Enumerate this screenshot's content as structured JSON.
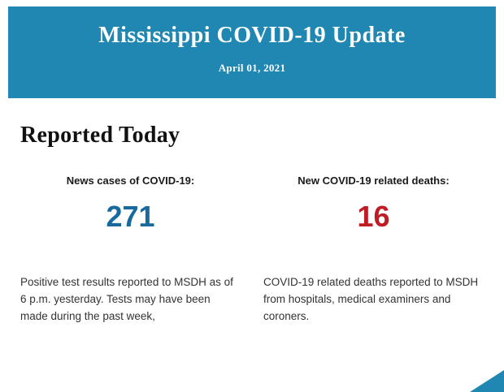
{
  "banner": {
    "title": "Mississippi COVID-19 Update",
    "date": "April 01, 2021",
    "bg_color": "#1f87b2"
  },
  "section": {
    "heading": "Reported Today"
  },
  "stats": [
    {
      "label": "News cases of COVID-19:",
      "value": "271",
      "value_color": "#17699e",
      "description": "Positive test results reported to MSDH as of 6 p.m. yesterday. Tests may have been made during the past week,"
    },
    {
      "label": "New COVID-19 related deaths:",
      "value": "16",
      "value_color": "#c01c26",
      "description": "COVID-19 related deaths reported to MSDH from hospitals, medical examiners and coroners."
    }
  ]
}
